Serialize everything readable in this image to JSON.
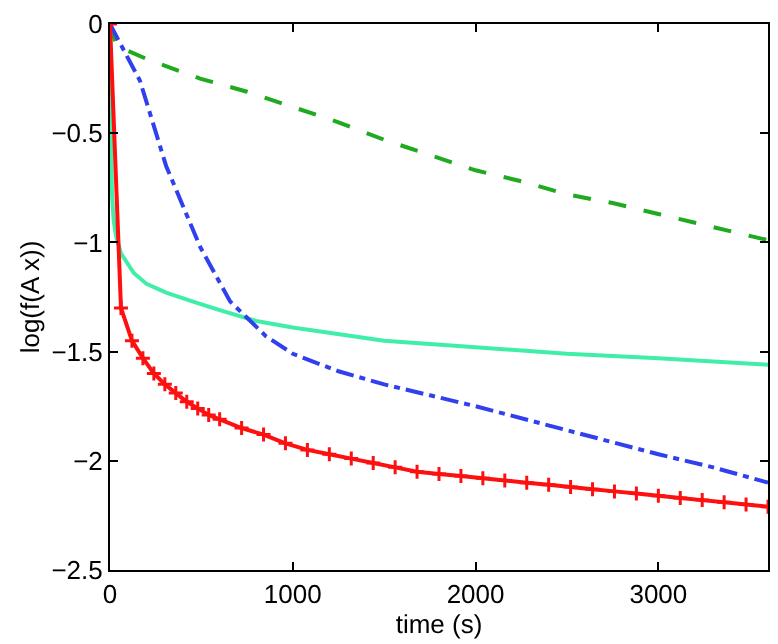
{
  "chart_data": {
    "type": "line",
    "xlabel": "time (s)",
    "ylabel": "log(f(A x))",
    "xlim": [
      0,
      3600
    ],
    "xticks": [
      0,
      1000,
      2000,
      3000
    ],
    "ylim": [
      -2.5,
      0
    ],
    "yticks": [
      0,
      -0.5,
      -1,
      -1.5,
      -2,
      -2.5
    ],
    "grid": false,
    "series": [
      {
        "color": "#1faa1f",
        "line_style": "dashed",
        "marker": "none",
        "x": [
          0,
          35,
          200,
          493,
          750,
          1000,
          1250,
          1500,
          1750,
          2000,
          2250,
          2500,
          2750,
          3000,
          3300,
          3600
        ],
        "values": [
          0,
          -0.1,
          -0.16,
          -0.25,
          -0.31,
          -0.38,
          -0.45,
          -0.53,
          -0.6,
          -0.67,
          -0.72,
          -0.78,
          -0.82,
          -0.87,
          -0.93,
          -0.99
        ]
      },
      {
        "color": "#40eea8",
        "line_style": "solid",
        "marker": "none",
        "x": [
          0,
          5,
          11,
          20,
          33,
          60,
          130,
          200,
          307,
          450,
          600,
          800,
          1000,
          1500,
          2000,
          2500,
          3000,
          3600
        ],
        "values": [
          0,
          -0.5,
          -0.78,
          -0.9,
          -0.97,
          -1.05,
          -1.14,
          -1.19,
          -1.23,
          -1.27,
          -1.31,
          -1.36,
          -1.39,
          -1.45,
          -1.48,
          -1.51,
          -1.53,
          -1.56
        ]
      },
      {
        "color": "#3040ee",
        "line_style": "dashdot",
        "marker": "none",
        "x": [
          0,
          50,
          164,
          307,
          493,
          657,
          854,
          1000,
          1250,
          1500,
          1750,
          2000,
          2500,
          3000,
          3300,
          3600
        ],
        "values": [
          0,
          -0.08,
          -0.26,
          -0.65,
          -1.02,
          -1.27,
          -1.43,
          -1.51,
          -1.59,
          -1.65,
          -1.7,
          -1.75,
          -1.86,
          -1.97,
          -2.03,
          -2.1
        ]
      },
      {
        "color": "#ff1010",
        "line_style": "solid",
        "marker": "cross",
        "x": [
          0,
          60,
          120,
          180,
          240,
          300,
          360,
          420,
          480,
          540,
          600,
          720,
          840,
          960,
          1080,
          1200,
          1320,
          1440,
          1560,
          1680,
          1800,
          1920,
          2040,
          2160,
          2280,
          2400,
          2520,
          2640,
          2760,
          2880,
          3000,
          3120,
          3240,
          3360,
          3480,
          3600
        ],
        "values": [
          0,
          -1.3,
          -1.45,
          -1.53,
          -1.6,
          -1.65,
          -1.69,
          -1.73,
          -1.76,
          -1.79,
          -1.81,
          -1.85,
          -1.88,
          -1.92,
          -1.95,
          -1.97,
          -1.99,
          -2.01,
          -2.03,
          -2.05,
          -2.06,
          -2.07,
          -2.08,
          -2.09,
          -2.1,
          -2.11,
          -2.12,
          -2.13,
          -2.14,
          -2.15,
          -2.16,
          -2.17,
          -2.18,
          -2.19,
          -2.2,
          -2.21
        ]
      }
    ]
  }
}
